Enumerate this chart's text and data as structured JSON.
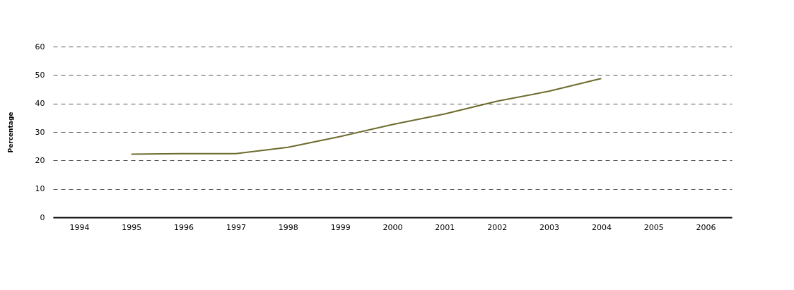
{
  "chart_data": {
    "type": "line",
    "ylabel": "Percentage",
    "categories": [
      "1994",
      "1995",
      "1996",
      "1997",
      "1998",
      "1999",
      "2000",
      "2001",
      "2002",
      "2003",
      "2004",
      "2005",
      "2006"
    ],
    "series": [
      {
        "color": "#6e6b2e",
        "values": [
          null,
          22.2,
          22.4,
          22.4,
          24.6,
          28.4,
          32.6,
          36.3,
          40.8,
          44.3,
          48.8,
          null,
          null
        ]
      }
    ],
    "ylim": [
      0,
      60
    ],
    "yticks": [
      0,
      10,
      20,
      30,
      40,
      50,
      60
    ],
    "grid": "y",
    "marker": "none",
    "line_style": "solid"
  }
}
